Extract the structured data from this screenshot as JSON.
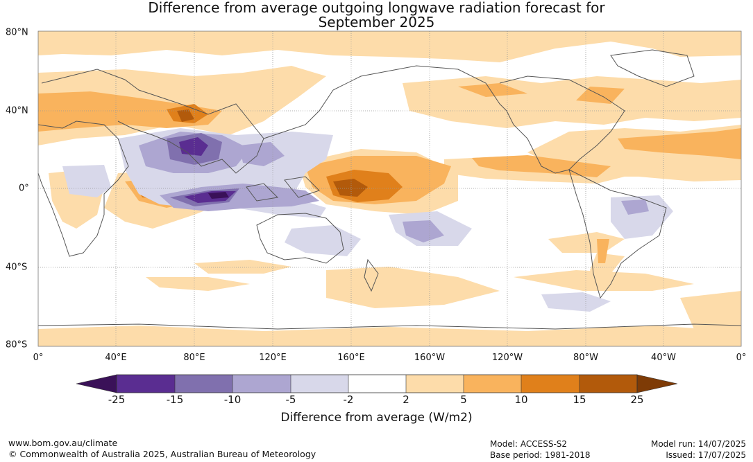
{
  "title_line1": "Difference from average outgoing longwave radiation forecast for",
  "title_line2": "September 2025",
  "longitude_labels": [
    "0°",
    "40°E",
    "80°E",
    "120°E",
    "160°E",
    "160°W",
    "120°W",
    "80°W",
    "40°W",
    "0°"
  ],
  "latitude_labels": [
    "80°N",
    "40°N",
    "0°",
    "40°S",
    "80°S"
  ],
  "colorbar": {
    "title": "Difference from average (W/m2)",
    "ticks": [
      "-25",
      "-15",
      "-10",
      "-5",
      "-2",
      "2",
      "5",
      "10",
      "15",
      "25"
    ],
    "colors": [
      "#3a1158",
      "#5a2d91",
      "#8070ae",
      "#ada6d1",
      "#d8d8ea",
      "#ffffff",
      "#fddcaa",
      "#f9b35d",
      "#e0801b",
      "#b25a0b",
      "#7e3b06"
    ]
  },
  "footer": {
    "url": "www.bom.gov.au/climate",
    "copyright": "© Commonwealth of Australia 2025, Australian Bureau of Meteorology",
    "model": "Model: ACCESS-S2",
    "base_period": "Base period: 1981-2018",
    "model_run": "Model run: 14/07/2025",
    "issued": "Issued: 17/07/2025"
  }
}
